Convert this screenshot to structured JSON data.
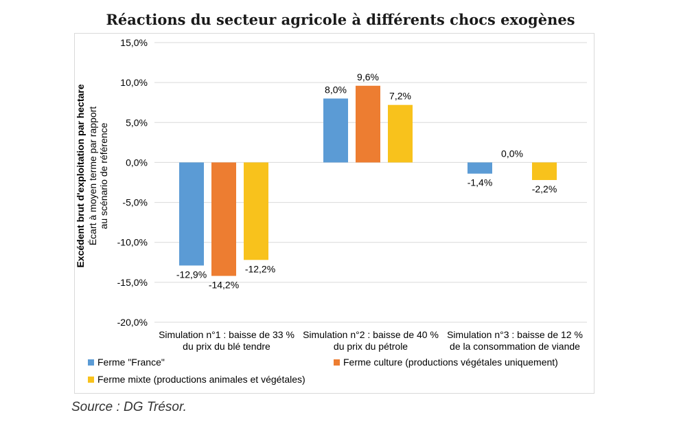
{
  "title": "Réactions du secteur agricole à différents chocs exogènes",
  "source": "Source : DG Trésor.",
  "colors": {
    "series1": "#5b9bd5",
    "series2": "#ed7d31",
    "series3": "#f8c21c",
    "grid": "#d9d9d9",
    "text": "#000000"
  },
  "chart_data": {
    "type": "bar",
    "ylabel_main": "Excédent brut d'exploitation par hectare",
    "ylabel_sub": [
      "Écart à moyen terme par rapport",
      "au scénario de référence"
    ],
    "ylim": [
      -20,
      15
    ],
    "yticks": [
      "15,0%",
      "10,0%",
      "5,0%",
      "0,0%",
      "-5,0%",
      "-10,0%",
      "-15,0%",
      "-20,0%"
    ],
    "ytick_values": [
      15,
      10,
      5,
      0,
      -5,
      -10,
      -15,
      -20
    ],
    "grid": true,
    "legend": "bottom",
    "categories": [
      [
        "Simulation n°1 : baisse de 33 %",
        "du prix du blé tendre"
      ],
      [
        "Simulation n°2 : baisse de 40 %",
        "du prix du pétrole"
      ],
      [
        "Simulation n°3 : baisse de 12 %",
        "de la consommation de viande"
      ]
    ],
    "series": [
      {
        "name": "Ferme \"France\"",
        "values": [
          -12.9,
          8.0,
          -1.4
        ],
        "labels": [
          "-12,9%",
          "8,0%",
          "-1,4%"
        ]
      },
      {
        "name": "Ferme culture (productions végétales uniquement)",
        "values": [
          -14.2,
          9.6,
          0.0
        ],
        "labels": [
          "-14,2%",
          "9,6%",
          "0,0%"
        ]
      },
      {
        "name": "Ferme mixte (productions animales et végétales)",
        "values": [
          -12.2,
          7.2,
          -2.2
        ],
        "labels": [
          "-12,2%",
          "7,2%",
          "-2,2%"
        ]
      }
    ]
  }
}
